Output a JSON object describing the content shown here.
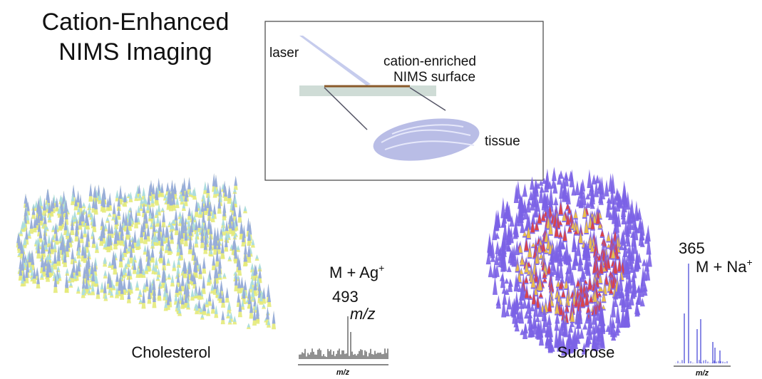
{
  "title": [
    "Cation-Enhanced",
    "NIMS Imaging"
  ],
  "schematic": {
    "laser": "laser",
    "surface": [
      "cation-enriched",
      "NIMS surface"
    ],
    "tissue": "tissue"
  },
  "panels": [
    {
      "label": "Cholesterol",
      "ion": {
        "base": "M + Ag",
        "charge": "+"
      },
      "mass": 493,
      "peak_annotation": "m/z",
      "axis_label": "m/z"
    },
    {
      "label": "Sucrose",
      "ion": {
        "base": "M + Na",
        "charge": "+"
      },
      "mass": 365,
      "axis_label": "m/z"
    }
  ]
}
